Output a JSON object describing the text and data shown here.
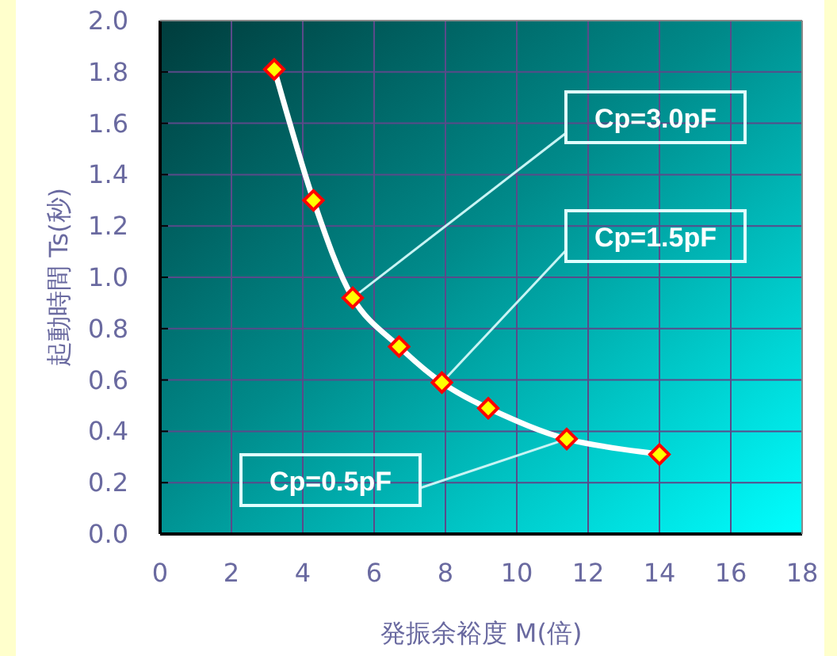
{
  "chart_data": {
    "type": "line",
    "xlabel": "発振余裕度  M(倍)",
    "ylabel": "起動時間  Ts(秒)",
    "x": [
      3.2,
      4.3,
      5.4,
      6.7,
      7.9,
      9.2,
      11.4,
      14.0
    ],
    "series": [
      {
        "color": "#ffffff",
        "values": [
          1.81,
          1.3,
          0.92,
          0.73,
          0.59,
          0.49,
          0.37,
          0.31
        ]
      }
    ],
    "marker": "diamond",
    "grid": true,
    "xlim": [
      0,
      18
    ],
    "xticks": [
      0,
      2,
      4,
      6,
      8,
      10,
      12,
      14,
      16,
      18
    ],
    "ylim": [
      0,
      2.0
    ],
    "yticks": [
      {
        "value": 0,
        "label": "0.0"
      },
      {
        "value": 0.2,
        "label": "0.2"
      },
      {
        "value": 0.4,
        "label": "0.4"
      },
      {
        "value": 0.6,
        "label": "0.6"
      },
      {
        "value": 0.8,
        "label": "0.8"
      },
      {
        "value": 1.0,
        "label": "1.0"
      },
      {
        "value": 1.2,
        "label": "1.2"
      },
      {
        "value": 1.4,
        "label": "1.4"
      },
      {
        "value": 1.6,
        "label": "1.6"
      },
      {
        "value": 1.8,
        "label": "1.8"
      },
      {
        "value": 2.0,
        "label": "2.0"
      }
    ],
    "annotations": [
      {
        "text": "Cp=3.0pF",
        "x": 5.4,
        "y": 0.92
      },
      {
        "text": "Cp=1.5pF",
        "x": 7.9,
        "y": 0.59
      },
      {
        "text": "Cp=0.5pF",
        "x": 11.4,
        "y": 0.37
      }
    ]
  }
}
